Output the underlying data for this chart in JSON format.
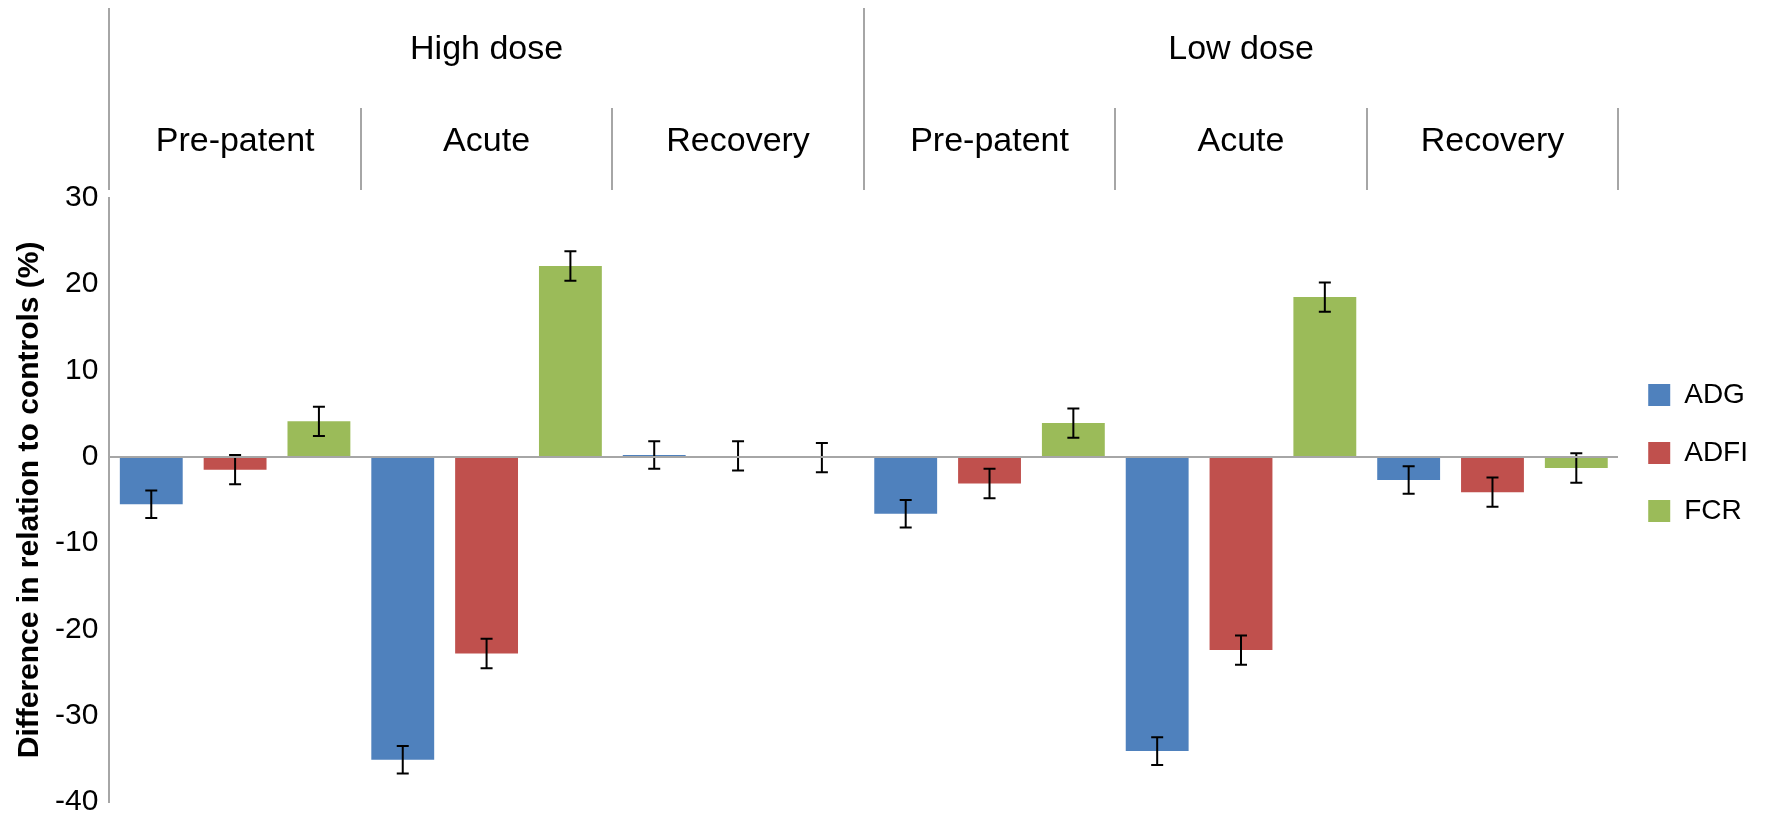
{
  "chart_data": {
    "type": "bar",
    "ylabel": "Difference in relation to controls (%)",
    "categories": [
      "Pre-patent",
      "Acute",
      "Recovery",
      "Pre-patent",
      "Acute",
      "Recovery"
    ],
    "annotations": [
      "High dose",
      "Low dose"
    ],
    "series": [
      {
        "name": "ADG",
        "color": "#4f81bd",
        "values": [
          -5.5,
          -35.1,
          0.2,
          -6.6,
          -34.1,
          -2.7
        ],
        "errors": [
          1.6,
          1.6,
          1.6,
          1.6,
          1.6,
          1.6
        ]
      },
      {
        "name": "ADFI",
        "color": "#c0504d",
        "values": [
          -1.5,
          -22.8,
          0.1,
          -3.1,
          -22.4,
          -4.1
        ],
        "errors": [
          1.7,
          1.7,
          1.7,
          1.7,
          1.7,
          1.7
        ]
      },
      {
        "name": "FCR",
        "color": "#9bbb59",
        "values": [
          4.1,
          22.1,
          -0.1,
          3.9,
          18.5,
          -1.3
        ],
        "errors": [
          1.7,
          1.7,
          1.7,
          1.7,
          1.7,
          1.7
        ]
      }
    ],
    "ylim": [
      -40,
      30
    ],
    "yticks": [
      -40,
      -30,
      -20,
      -10,
      0,
      10,
      20,
      30
    ],
    "grid": false,
    "legend": "right"
  }
}
